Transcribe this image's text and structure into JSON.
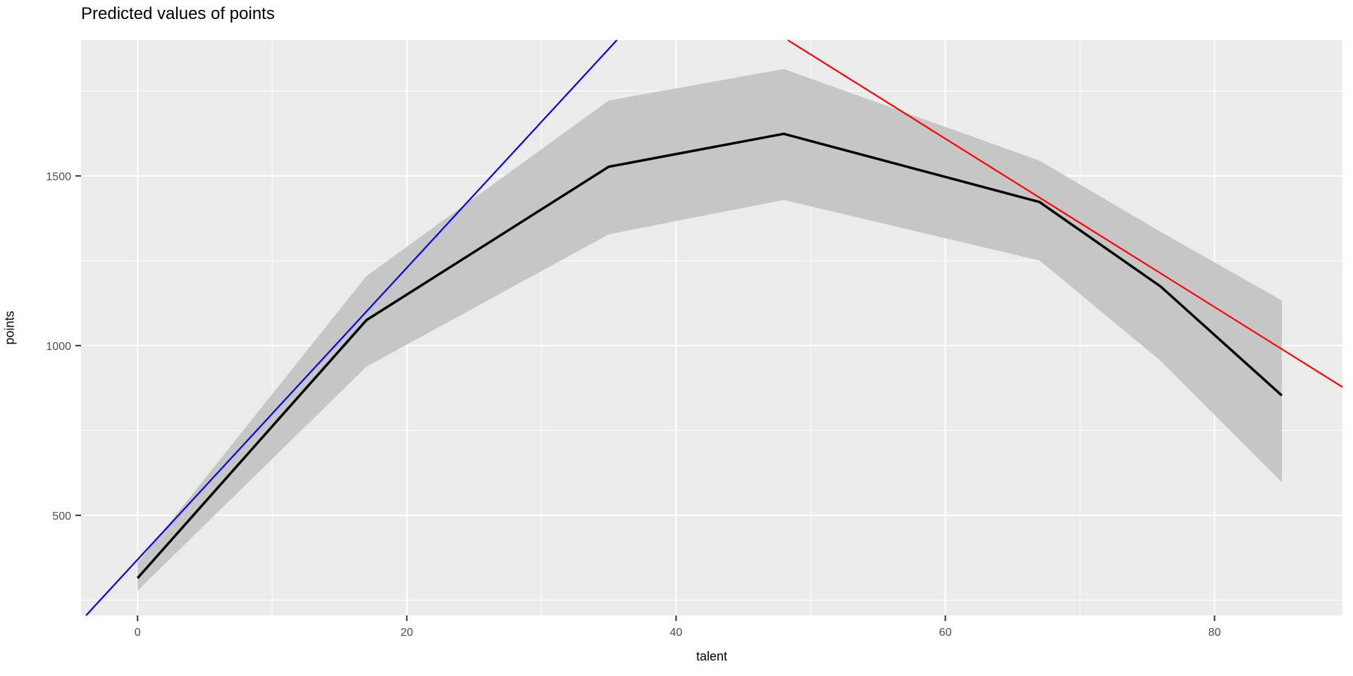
{
  "chart_data": {
    "type": "line",
    "title": "Predicted values of points",
    "xlabel": "talent",
    "ylabel": "points",
    "xlim": [
      -4.2,
      89.5
    ],
    "ylim": [
      205,
      1900
    ],
    "x_ticks": [
      0,
      20,
      40,
      60,
      80
    ],
    "y_ticks": [
      500,
      1000,
      1500
    ],
    "x_minor_gridlines": [
      10,
      30,
      50,
      70
    ],
    "y_minor_gridlines": [
      250,
      750,
      1250,
      1750
    ],
    "grid": "on",
    "legend": "none",
    "series": [
      {
        "name": "predicted-points",
        "type": "line-with-ribbon",
        "color": "#000000",
        "linewidth": 3.5,
        "x": [
          0,
          17,
          35,
          48,
          67,
          76,
          85
        ],
        "y": [
          315,
          1075,
          1527,
          1624,
          1423,
          1174,
          853
        ],
        "ribbon_lower": [
          278,
          938,
          1328,
          1429,
          1251,
          955,
          597
        ],
        "ribbon_upper": [
          360,
          1205,
          1722,
          1815,
          1545,
          1335,
          1133
        ],
        "ribbon_color": "#c6c6c6"
      },
      {
        "name": "tangent-line-low-talent",
        "type": "line",
        "color": "#0000ff",
        "linewidth": 2.2,
        "x": [
          -3.83,
          35.6
        ],
        "y": [
          205,
          1900
        ]
      },
      {
        "name": "tangent-line-high-talent",
        "type": "line",
        "color": "#ff0000",
        "linewidth": 2.2,
        "x": [
          48.3,
          89.5
        ],
        "y": [
          1900,
          878
        ]
      }
    ],
    "colors": {
      "panel_background": "#ebebeb",
      "gridline": "#ffffff",
      "tick_mark": "#333333",
      "tick_label": "#4d4d4d",
      "title_text": "#000000"
    }
  }
}
